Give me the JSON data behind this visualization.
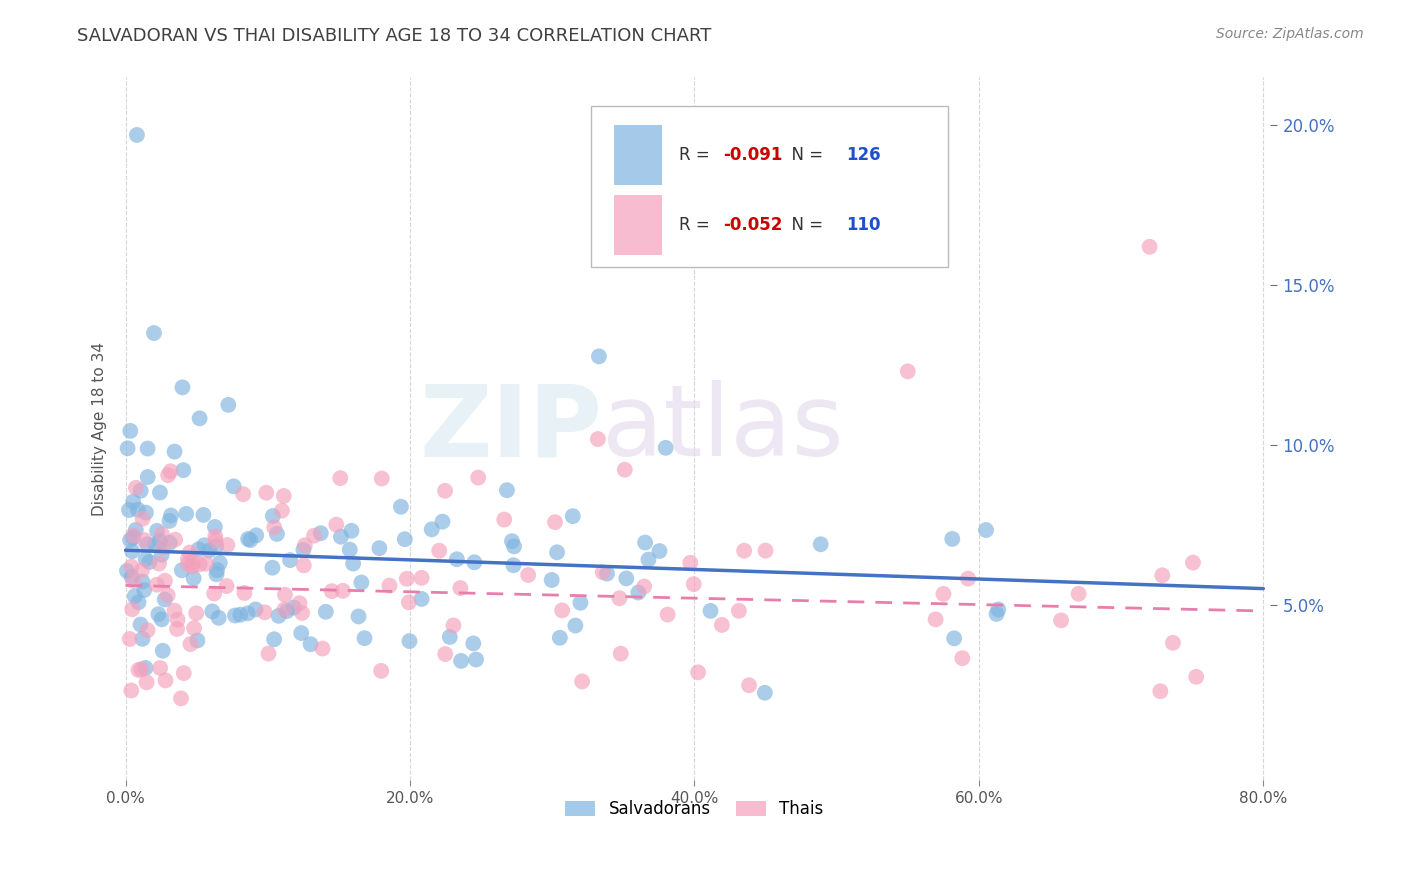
{
  "title": "SALVADORAN VS THAI DISABILITY AGE 18 TO 34 CORRELATION CHART",
  "source_text": "Source: ZipAtlas.com",
  "ylabel": "Disability Age 18 to 34",
  "xlim": [
    -0.005,
    0.805
  ],
  "ylim": [
    -0.005,
    0.215
  ],
  "xtick_labels": [
    "0.0%",
    "20.0%",
    "40.0%",
    "60.0%",
    "80.0%"
  ],
  "xtick_values": [
    0.0,
    0.2,
    0.4,
    0.6,
    0.8
  ],
  "ytick_labels": [
    "5.0%",
    "10.0%",
    "15.0%",
    "20.0%"
  ],
  "ytick_values": [
    0.05,
    0.1,
    0.15,
    0.2
  ],
  "salvadoran_color": "#7EB3E0",
  "thai_color": "#F4A0BB",
  "salvadoran_line_color": "#4472C4",
  "thai_line_color": "#E87EAD",
  "salvadoran_R": -0.091,
  "salvadoran_N": 126,
  "thai_R": -0.052,
  "thai_N": 110,
  "legend_R_color": "#CC0000",
  "legend_N_color": "#1F4FCC",
  "watermark": "ZIPatlas",
  "background_color": "#FFFFFF",
  "grid_color": "#CCCCCC",
  "title_color": "#404040",
  "title_fontsize": 13,
  "salvadoran_seed": 12,
  "thai_seed": 99
}
